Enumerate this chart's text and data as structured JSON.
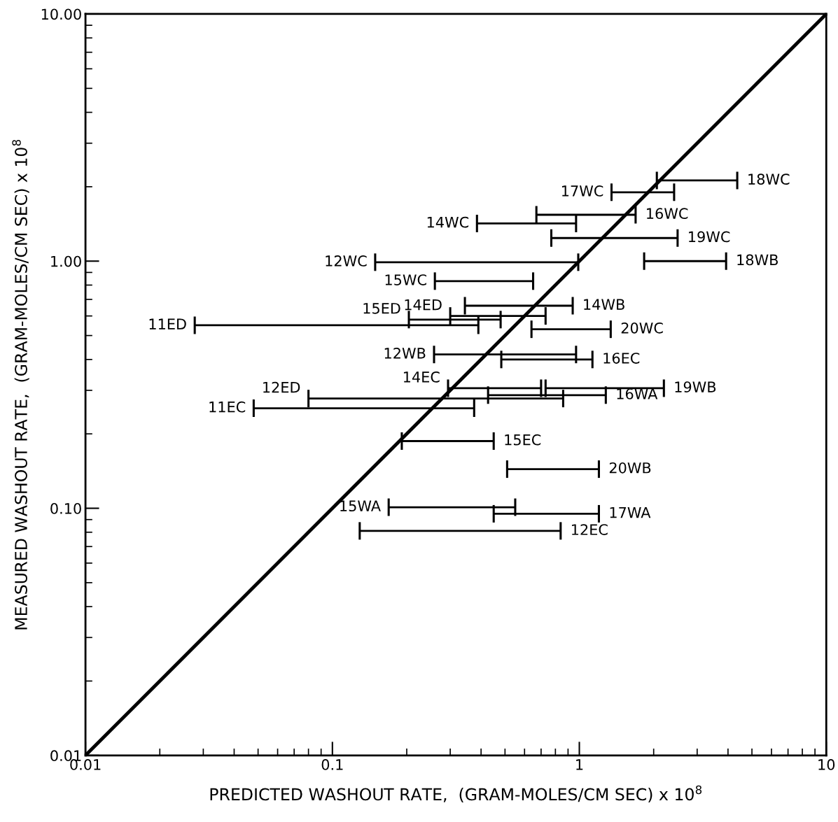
{
  "chart_data": {
    "type": "line",
    "xlabel": "PREDICTED WASHOUT RATE,  (GRAM-MOLES/CM SEC) x 10$^{8}$",
    "ylabel": "MEASURED WASHOUT RATE,  (GRAM-MOLES/CM SEC) x 10$^{8}$",
    "log": "xy",
    "grid": false,
    "xlim": [
      0.01,
      10
    ],
    "ylim": [
      0.01,
      10
    ],
    "xticks": [
      {
        "value": 0.01,
        "label": "0.01"
      },
      {
        "value": 0.1,
        "label": "0.1"
      },
      {
        "value": 1,
        "label": "1"
      },
      {
        "value": 10,
        "label": "10"
      }
    ],
    "yticks": [
      {
        "value": 0.01,
        "label": "0.01"
      },
      {
        "value": 0.1,
        "label": "0.10"
      },
      {
        "value": 1,
        "label": "1.00"
      },
      {
        "value": 10,
        "label": "10.00"
      }
    ],
    "series": [
      {
        "color": "#000000",
        "x": [
          0.01,
          10
        ],
        "values": [
          0.01,
          10
        ],
        "marker": "none"
      },
      {
        "type": "line",
        "color": "#000000",
        "x": [
          2.06,
          4.36
        ],
        "values": [
          2.12,
          2.12
        ]
      },
      {
        "type": "line",
        "color": "#000000",
        "x": [
          1.35,
          2.42
        ],
        "values": [
          1.9,
          1.9
        ]
      },
      {
        "type": "line",
        "color": "#000000",
        "x": [
          0.67,
          1.69
        ],
        "values": [
          1.54,
          1.54
        ]
      },
      {
        "type": "line",
        "color": "#000000",
        "x": [
          0.385,
          0.97
        ],
        "values": [
          1.42,
          1.42
        ]
      },
      {
        "type": "line",
        "color": "#000000",
        "x": [
          0.77,
          2.5
        ],
        "values": [
          1.24,
          1.24
        ]
      },
      {
        "type": "line",
        "color": "#000000",
        "x": [
          0.149,
          0.99
        ],
        "values": [
          0.99,
          0.99
        ]
      },
      {
        "type": "line",
        "color": "#000000",
        "x": [
          1.83,
          3.93
        ],
        "values": [
          1.0,
          1.0
        ]
      },
      {
        "type": "line",
        "color": "#000000",
        "x": [
          0.26,
          0.65
        ],
        "values": [
          0.83,
          0.83
        ]
      },
      {
        "type": "line",
        "color": "#000000",
        "x": [
          0.344,
          0.94
        ],
        "values": [
          0.66,
          0.66
        ]
      },
      {
        "type": "line",
        "color": "#000000",
        "x": [
          0.3,
          0.73
        ],
        "values": [
          0.6,
          0.6
        ]
      },
      {
        "type": "line",
        "color": "#000000",
        "x": [
          0.204,
          0.48
        ],
        "values": [
          0.58,
          0.58
        ]
      },
      {
        "type": "line",
        "color": "#000000",
        "x": [
          0.0277,
          0.39
        ],
        "values": [
          0.55,
          0.55
        ]
      },
      {
        "type": "line",
        "color": "#000000",
        "x": [
          0.64,
          1.34
        ],
        "values": [
          0.53,
          0.53
        ]
      },
      {
        "type": "line",
        "color": "#000000",
        "x": [
          0.258,
          0.97
        ],
        "values": [
          0.419,
          0.419
        ]
      },
      {
        "type": "line",
        "color": "#000000",
        "x": [
          0.483,
          1.13
        ],
        "values": [
          0.4,
          0.4
        ]
      },
      {
        "type": "line",
        "color": "#000000",
        "x": [
          0.294,
          0.7
        ],
        "values": [
          0.306,
          0.306
        ]
      },
      {
        "type": "line",
        "color": "#000000",
        "x": [
          0.73,
          2.2
        ],
        "values": [
          0.306,
          0.306
        ]
      },
      {
        "type": "line",
        "color": "#000000",
        "x": [
          0.427,
          1.28
        ],
        "values": [
          0.287,
          0.287
        ]
      },
      {
        "type": "line",
        "color": "#000000",
        "x": [
          0.08,
          0.86
        ],
        "values": [
          0.278,
          0.278
        ]
      },
      {
        "type": "line",
        "color": "#000000",
        "x": [
          0.048,
          0.375
        ],
        "values": [
          0.254,
          0.254
        ]
      },
      {
        "type": "line",
        "color": "#000000",
        "x": [
          0.191,
          0.45
        ],
        "values": [
          0.187,
          0.187
        ]
      },
      {
        "type": "line",
        "color": "#000000",
        "x": [
          0.51,
          1.2
        ],
        "values": [
          0.144,
          0.144
        ]
      },
      {
        "type": "line",
        "color": "#000000",
        "x": [
          0.169,
          0.55
        ],
        "values": [
          0.101,
          0.101
        ]
      },
      {
        "type": "line",
        "color": "#000000",
        "x": [
          0.45,
          1.2
        ],
        "values": [
          0.095,
          0.095
        ]
      },
      {
        "type": "line",
        "color": "#000000",
        "x": [
          0.129,
          0.84
        ],
        "values": [
          0.081,
          0.081
        ]
      }
    ],
    "annotations": [
      {
        "text": "18WC",
        "x": 4.36,
        "y": 2.12
      },
      {
        "text": "17WC",
        "x": 1.35,
        "y": 1.9
      },
      {
        "text": "16WC",
        "x": 1.69,
        "y": 1.54
      },
      {
        "text": "14WC",
        "x": 0.385,
        "y": 1.42
      },
      {
        "text": "19WC",
        "x": 2.5,
        "y": 1.24
      },
      {
        "text": "12WC",
        "x": 0.149,
        "y": 0.99
      },
      {
        "text": "18WB",
        "x": 3.93,
        "y": 1.0
      },
      {
        "text": "15WC",
        "x": 0.26,
        "y": 0.83
      },
      {
        "text": "14WB",
        "x": 0.94,
        "y": 0.66
      },
      {
        "text": "14ED",
        "x": 0.3,
        "y": 0.6
      },
      {
        "text": "15ED",
        "x": 0.204,
        "y": 0.58
      },
      {
        "text": "11ED",
        "x": 0.0277,
        "y": 0.55
      },
      {
        "text": "20WC",
        "x": 1.34,
        "y": 0.53
      },
      {
        "text": "12WB",
        "x": 0.258,
        "y": 0.419
      },
      {
        "text": "16EC",
        "x": 1.13,
        "y": 0.4
      },
      {
        "text": "14EC",
        "x": 0.294,
        "y": 0.306
      },
      {
        "text": "19WB",
        "x": 2.2,
        "y": 0.306
      },
      {
        "text": "16WA",
        "x": 1.28,
        "y": 0.287
      },
      {
        "text": "12ED",
        "x": 0.08,
        "y": 0.278
      },
      {
        "text": "11EC",
        "x": 0.048,
        "y": 0.254
      },
      {
        "text": "15EC",
        "x": 0.45,
        "y": 0.187
      },
      {
        "text": "20WB",
        "x": 1.2,
        "y": 0.144
      },
      {
        "text": "15WA",
        "x": 0.169,
        "y": 0.101
      },
      {
        "text": "17WA",
        "x": 1.2,
        "y": 0.095
      },
      {
        "text": "12EC",
        "x": 0.84,
        "y": 0.081
      }
    ]
  }
}
